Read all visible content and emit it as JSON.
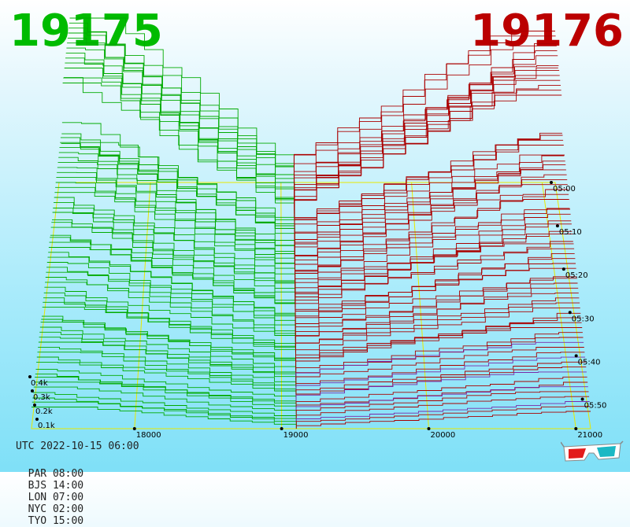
{
  "header": {
    "left_value": "19175",
    "right_value": "19176",
    "left_color": "#00bb00",
    "right_color": "#bb0000"
  },
  "footer": {
    "utc": "UTC 2022-10-15 06:00",
    "timezones": [
      "PAR 08:00",
      "BJS 14:00",
      "LON 07:00",
      "NYC 02:00",
      "TYO 15:00"
    ]
  },
  "glasses_icon": "3d-glasses-icon",
  "chart_data": {
    "type": "3d-depth-waterfall",
    "x_ticks": [
      "18000",
      "19000",
      "20000",
      "21000"
    ],
    "x_values": [
      18000,
      19000,
      20000,
      21000
    ],
    "z_ticks": [
      "0.1k",
      "0.2k",
      "0.3k",
      "0.4k"
    ],
    "z_values": [
      100,
      200,
      300,
      400
    ],
    "time_ticks": [
      "05:00",
      "05:10",
      "05:20",
      "05:30",
      "05:40",
      "05:50"
    ],
    "bid_price": 19175,
    "ask_price": 19176,
    "bid_color": "#00aa00",
    "ask_color": "#aa0000",
    "grid_color": "#e8e800"
  }
}
